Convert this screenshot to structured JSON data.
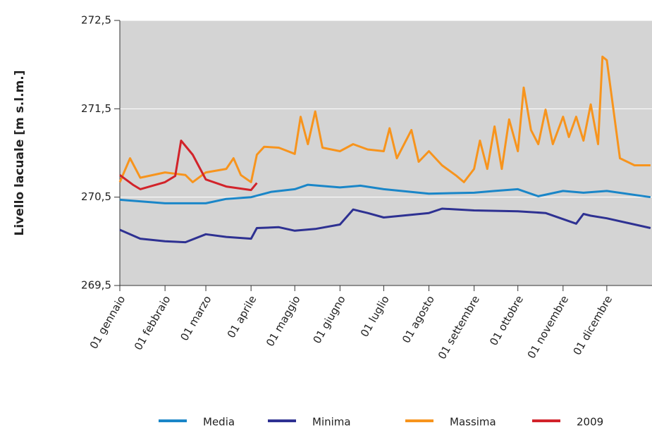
{
  "chart_data": {
    "type": "line",
    "y_label": "Livello lacuale [m s.l.m.]",
    "xlim": [
      1,
      366
    ],
    "xticks": [
      {
        "value": 1,
        "label": "01 gennaio"
      },
      {
        "value": 32,
        "label": "01 febbraio"
      },
      {
        "value": 60,
        "label": "01 marzo"
      },
      {
        "value": 91,
        "label": "01 aprile"
      },
      {
        "value": 121,
        "label": "01 maggio"
      },
      {
        "value": 152,
        "label": "01 giugno"
      },
      {
        "value": 182,
        "label": "01 luglio"
      },
      {
        "value": 213,
        "label": "01 agosto"
      },
      {
        "value": 244,
        "label": "01 settembre"
      },
      {
        "value": 274,
        "label": "01 ottobre"
      },
      {
        "value": 305,
        "label": "01 novembre"
      },
      {
        "value": 335,
        "label": "01 dicembre"
      }
    ],
    "ylim": [
      269.5,
      272.5
    ],
    "yticks": [
      {
        "value": 269.5,
        "label": "269,5"
      },
      {
        "value": 270.5,
        "label": "270,5"
      },
      {
        "value": 271.5,
        "label": "271,5"
      },
      {
        "value": 272.5,
        "label": "272,5"
      }
    ],
    "grid": true,
    "legend": "bottom",
    "series": [
      {
        "name": "Media",
        "color": "#1a86c8",
        "x": [
          1,
          32,
          60,
          74,
          91,
          105,
          121,
          130,
          152,
          166,
          182,
          213,
          244,
          258,
          274,
          288,
          305,
          319,
          335,
          365
        ],
        "values": [
          270.47,
          270.43,
          270.43,
          270.48,
          270.5,
          270.56,
          270.59,
          270.64,
          270.61,
          270.63,
          270.59,
          270.54,
          270.55,
          270.57,
          270.59,
          270.51,
          270.57,
          270.55,
          270.57,
          270.5
        ]
      },
      {
        "name": "Minima",
        "color": "#2e3192",
        "x": [
          1,
          15,
          32,
          46,
          60,
          74,
          91,
          95,
          110,
          121,
          135,
          152,
          161,
          171,
          182,
          213,
          222,
          244,
          274,
          293,
          314,
          319,
          324,
          335,
          365
        ],
        "values": [
          270.13,
          270.03,
          270.0,
          269.99,
          270.08,
          270.05,
          270.03,
          270.15,
          270.16,
          270.12,
          270.14,
          270.19,
          270.36,
          270.32,
          270.27,
          270.32,
          270.37,
          270.35,
          270.34,
          270.32,
          270.2,
          270.31,
          270.29,
          270.26,
          270.15
        ]
      },
      {
        "name": "Massima",
        "color": "#f7941d",
        "x": [
          1,
          8,
          15,
          32,
          46,
          51,
          60,
          74,
          79,
          84,
          91,
          95,
          100,
          110,
          121,
          125,
          130,
          135,
          140,
          152,
          161,
          171,
          182,
          186,
          191,
          201,
          206,
          213,
          222,
          232,
          237,
          244,
          248,
          253,
          258,
          263,
          268,
          274,
          278,
          283,
          288,
          293,
          298,
          305,
          309,
          314,
          319,
          324,
          329,
          332,
          335,
          344,
          354,
          365
        ],
        "values": [
          270.67,
          270.94,
          270.72,
          270.78,
          270.75,
          270.67,
          270.78,
          270.82,
          270.94,
          270.75,
          270.67,
          270.98,
          271.07,
          271.06,
          270.99,
          271.41,
          271.1,
          271.47,
          271.06,
          271.02,
          271.1,
          271.04,
          271.02,
          271.28,
          270.94,
          271.26,
          270.9,
          271.02,
          270.86,
          270.74,
          270.67,
          270.82,
          271.14,
          270.82,
          271.3,
          270.82,
          271.38,
          271.02,
          271.74,
          271.26,
          271.1,
          271.49,
          271.1,
          271.41,
          271.18,
          271.41,
          271.14,
          271.55,
          271.1,
          272.09,
          272.05,
          270.94,
          270.86,
          270.86
        ]
      },
      {
        "name": "2009",
        "color": "#d2232a",
        "x": [
          1,
          10,
          15,
          32,
          39,
          43,
          51,
          60,
          74,
          91,
          95
        ],
        "values": [
          270.75,
          270.64,
          270.59,
          270.67,
          270.74,
          271.14,
          270.98,
          270.7,
          270.62,
          270.58,
          270.66
        ]
      }
    ]
  }
}
